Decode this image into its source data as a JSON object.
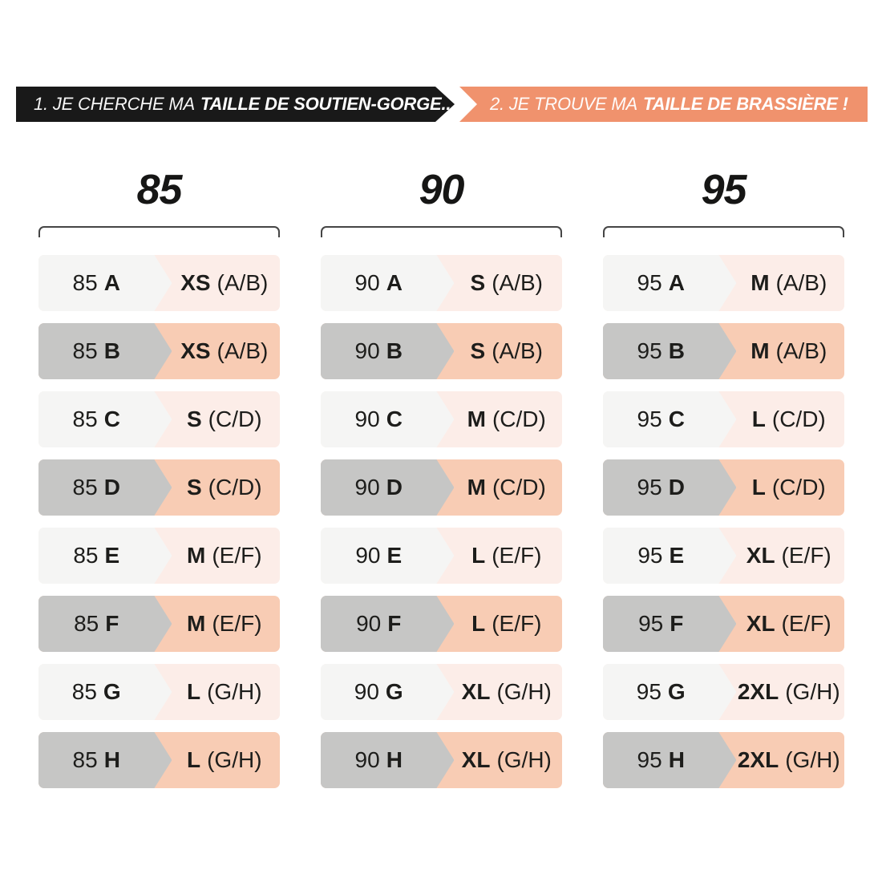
{
  "banner": {
    "step1_prefix": "1. JE CHERCHE MA",
    "step1_bold": "TAILLE DE SOUTIEN-GORGE...",
    "step2_prefix": "2. JE TROUVE MA",
    "step2_bold": "TAILLE DE BRASSIÈRE !",
    "black_color": "#191919",
    "salmon_color": "#f0926d"
  },
  "colors": {
    "row_light_left": "#f5f5f4",
    "row_light_right": "#fcede8",
    "row_dark_left": "#c6c6c5",
    "row_dark_right": "#f8ccb4",
    "text": "#1d1d1b",
    "bracket": "#454545",
    "background": "#ffffff"
  },
  "columns": [
    {
      "band": "85",
      "rows": [
        {
          "band": "85",
          "cup": "A",
          "size": "XS",
          "range": "(A/B)"
        },
        {
          "band": "85",
          "cup": "B",
          "size": "XS",
          "range": "(A/B)"
        },
        {
          "band": "85",
          "cup": "C",
          "size": "S",
          "range": "(C/D)"
        },
        {
          "band": "85",
          "cup": "D",
          "size": "S",
          "range": "(C/D)"
        },
        {
          "band": "85",
          "cup": "E",
          "size": "M",
          "range": "(E/F)"
        },
        {
          "band": "85",
          "cup": "F",
          "size": "M",
          "range": "(E/F)"
        },
        {
          "band": "85",
          "cup": "G",
          "size": "L",
          "range": "(G/H)"
        },
        {
          "band": "85",
          "cup": "H",
          "size": "L",
          "range": "(G/H)"
        }
      ]
    },
    {
      "band": "90",
      "rows": [
        {
          "band": "90",
          "cup": "A",
          "size": "S",
          "range": "(A/B)"
        },
        {
          "band": "90",
          "cup": "B",
          "size": "S",
          "range": "(A/B)"
        },
        {
          "band": "90",
          "cup": "C",
          "size": "M",
          "range": "(C/D)"
        },
        {
          "band": "90",
          "cup": "D",
          "size": "M",
          "range": "(C/D)"
        },
        {
          "band": "90",
          "cup": "E",
          "size": "L",
          "range": "(E/F)"
        },
        {
          "band": "90",
          "cup": "F",
          "size": "L",
          "range": "(E/F)"
        },
        {
          "band": "90",
          "cup": "G",
          "size": "XL",
          "range": "(G/H)"
        },
        {
          "band": "90",
          "cup": "H",
          "size": "XL",
          "range": "(G/H)"
        }
      ]
    },
    {
      "band": "95",
      "rows": [
        {
          "band": "95",
          "cup": "A",
          "size": "M",
          "range": "(A/B)"
        },
        {
          "band": "95",
          "cup": "B",
          "size": "M",
          "range": "(A/B)"
        },
        {
          "band": "95",
          "cup": "C",
          "size": "L",
          "range": "(C/D)"
        },
        {
          "band": "95",
          "cup": "D",
          "size": "L",
          "range": "(C/D)"
        },
        {
          "band": "95",
          "cup": "E",
          "size": "XL",
          "range": "(E/F)"
        },
        {
          "band": "95",
          "cup": "F",
          "size": "XL",
          "range": "(E/F)"
        },
        {
          "band": "95",
          "cup": "G",
          "size": "2XL",
          "range": "(G/H)"
        },
        {
          "band": "95",
          "cup": "H",
          "size": "2XL",
          "range": "(G/H)"
        }
      ]
    }
  ],
  "chart_data": {
    "type": "table",
    "title": "1. JE CHERCHE MA TAILLE DE SOUTIEN-GORGE... / 2. JE TROUVE MA TAILLE DE BRASSIÈRE !",
    "columns": [
      "Taille de soutien-gorge",
      "Taille de brassière"
    ],
    "rows": [
      [
        "85 A",
        "XS (A/B)"
      ],
      [
        "85 B",
        "XS (A/B)"
      ],
      [
        "85 C",
        "S (C/D)"
      ],
      [
        "85 D",
        "S (C/D)"
      ],
      [
        "85 E",
        "M (E/F)"
      ],
      [
        "85 F",
        "M (E/F)"
      ],
      [
        "85 G",
        "L (G/H)"
      ],
      [
        "85 H",
        "L (G/H)"
      ],
      [
        "90 A",
        "S (A/B)"
      ],
      [
        "90 B",
        "S (A/B)"
      ],
      [
        "90 C",
        "M (C/D)"
      ],
      [
        "90 D",
        "M (C/D)"
      ],
      [
        "90 E",
        "L (E/F)"
      ],
      [
        "90 F",
        "L (E/F)"
      ],
      [
        "90 G",
        "XL (G/H)"
      ],
      [
        "90 H",
        "XL (G/H)"
      ],
      [
        "95 A",
        "M (A/B)"
      ],
      [
        "95 B",
        "M (A/B)"
      ],
      [
        "95 C",
        "L (C/D)"
      ],
      [
        "95 D",
        "L (C/D)"
      ],
      [
        "95 E",
        "XL (E/F)"
      ],
      [
        "95 F",
        "XL (E/F)"
      ],
      [
        "95 G",
        "2XL (G/H)"
      ],
      [
        "95 H",
        "2XL (G/H)"
      ]
    ],
    "groups": [
      "85",
      "90",
      "95"
    ],
    "legend_position": "none",
    "grid": false
  }
}
